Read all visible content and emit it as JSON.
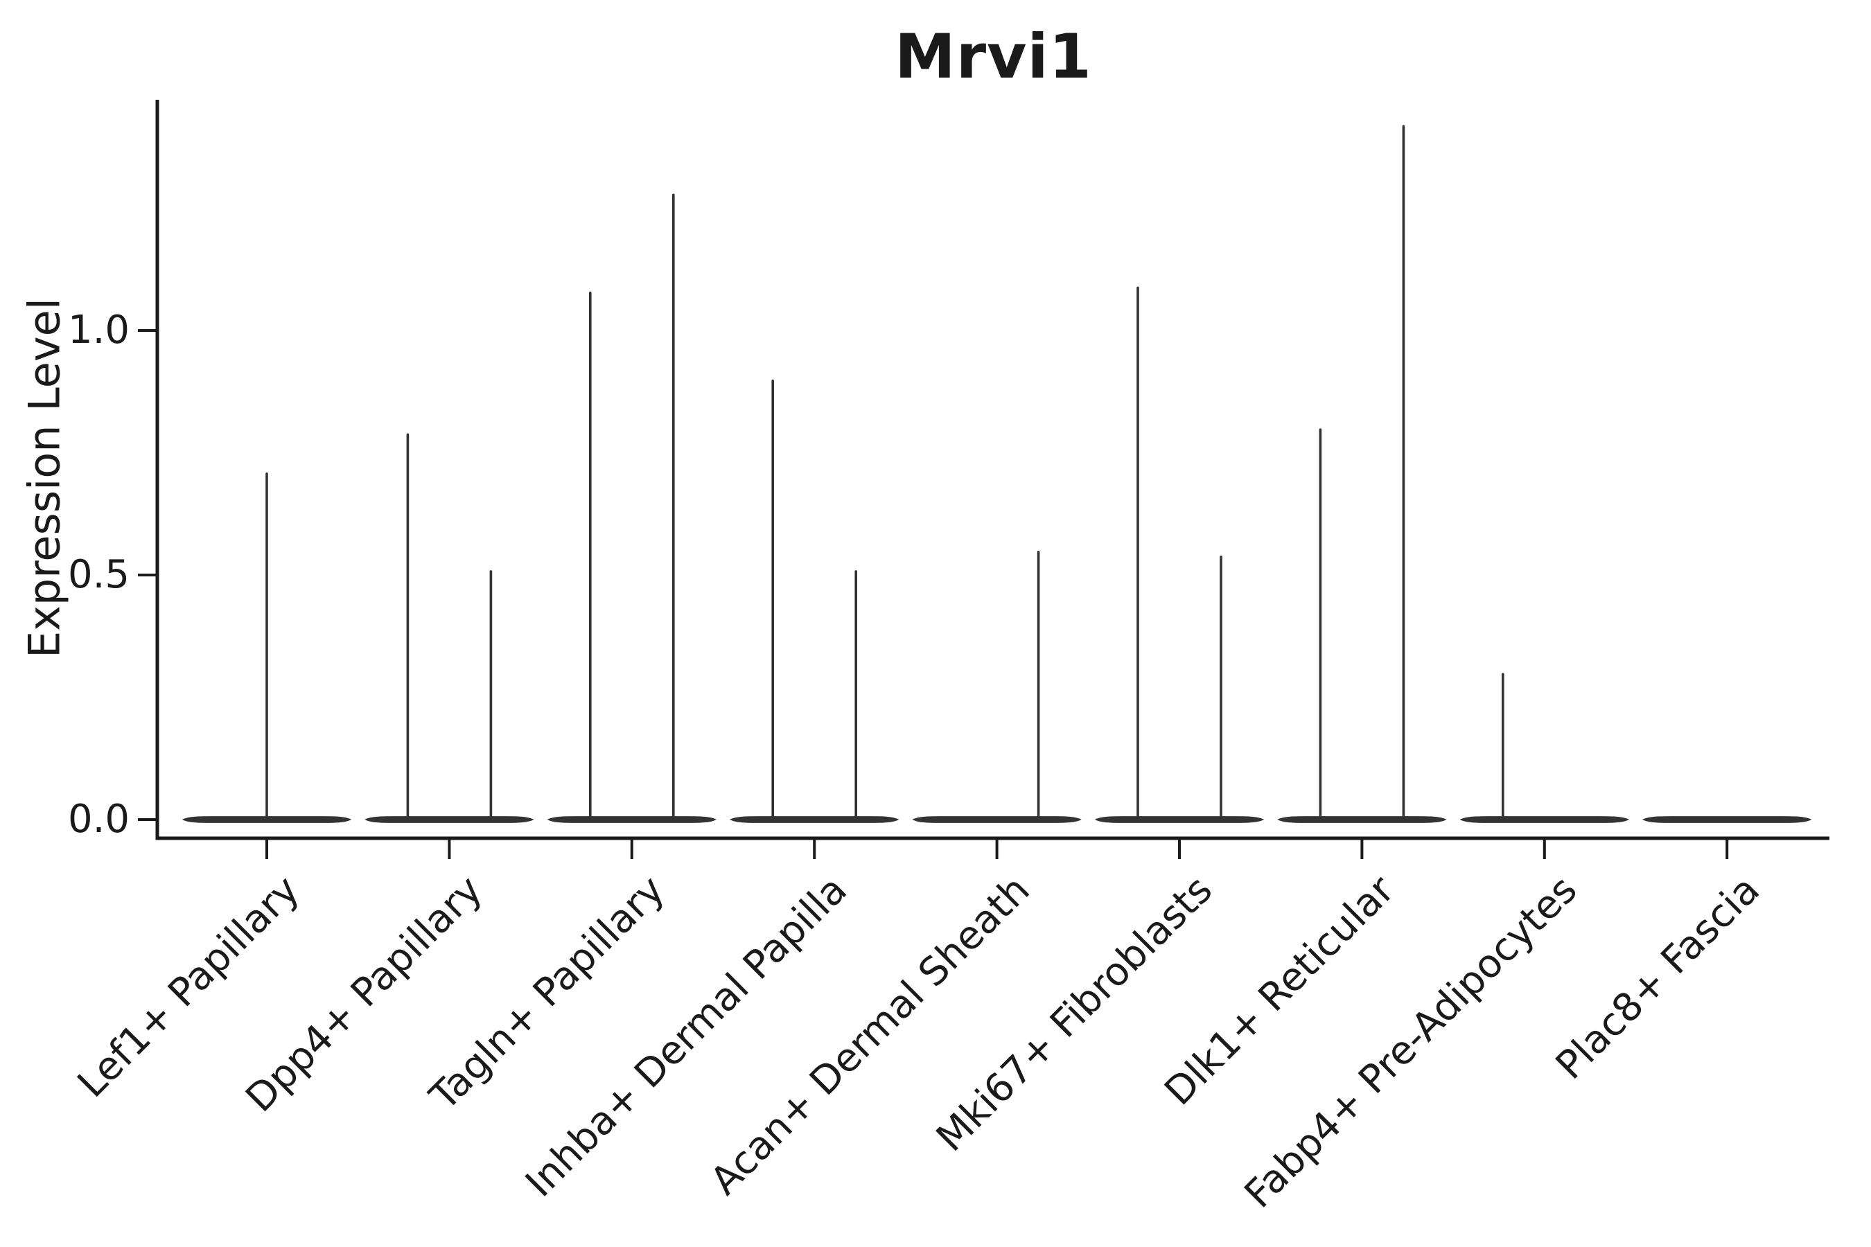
{
  "figure": {
    "background_color": "#ffffff",
    "text_color": "#1a1a1a",
    "violin_color": "#333333",
    "axis_color": "#1a1a1a"
  },
  "chart_data": {
    "type": "violin",
    "title": "Mrvi1",
    "xlabel": "",
    "ylabel": "Expression Level",
    "grid": false,
    "legend": "none",
    "ylim": [
      -0.04,
      1.47
    ],
    "yticks": [
      "0.0",
      "0.5",
      "1.0"
    ],
    "ytick_values": [
      0.0,
      0.5,
      1.0
    ],
    "categories": [
      "Lef1+ Papillary",
      "Dpp4+ Papillary",
      "Tagln+ Papillary",
      "Inhba+ Dermal Papilla",
      "Acan+ Dermal Sheath",
      "Mki67+ Fibroblasts",
      "Dlk1+ Reticular",
      "Fabp4+ Pre-Adipocytes",
      "Plac8+ Fascia"
    ],
    "violins": [
      {
        "category": "Lef1+ Papillary",
        "spikes": [
          {
            "offset": "center",
            "max_expression": 0.71
          }
        ]
      },
      {
        "category": "Dpp4+ Papillary",
        "spikes": [
          {
            "offset": "left",
            "max_expression": 0.79
          },
          {
            "offset": "right",
            "max_expression": 0.51
          }
        ]
      },
      {
        "category": "Tagln+ Papillary",
        "spikes": [
          {
            "offset": "left",
            "max_expression": 1.08
          },
          {
            "offset": "right",
            "max_expression": 1.28
          }
        ]
      },
      {
        "category": "Inhba+ Dermal Papilla",
        "spikes": [
          {
            "offset": "left",
            "max_expression": 0.9
          },
          {
            "offset": "right",
            "max_expression": 0.51
          }
        ]
      },
      {
        "category": "Acan+ Dermal Sheath",
        "spikes": [
          {
            "offset": "right",
            "max_expression": 0.55
          }
        ]
      },
      {
        "category": "Mki67+ Fibroblasts",
        "spikes": [
          {
            "offset": "left",
            "max_expression": 1.09
          },
          {
            "offset": "right",
            "max_expression": 0.54
          }
        ]
      },
      {
        "category": "Dlk1+ Reticular",
        "spikes": [
          {
            "offset": "left",
            "max_expression": 0.8
          },
          {
            "offset": "right",
            "max_expression": 1.42
          }
        ]
      },
      {
        "category": "Fabp4+ Pre-Adipocytes",
        "spikes": [
          {
            "offset": "left",
            "max_expression": 0.3
          }
        ]
      },
      {
        "category": "Plac8+ Fascia",
        "spikes": []
      }
    ]
  }
}
